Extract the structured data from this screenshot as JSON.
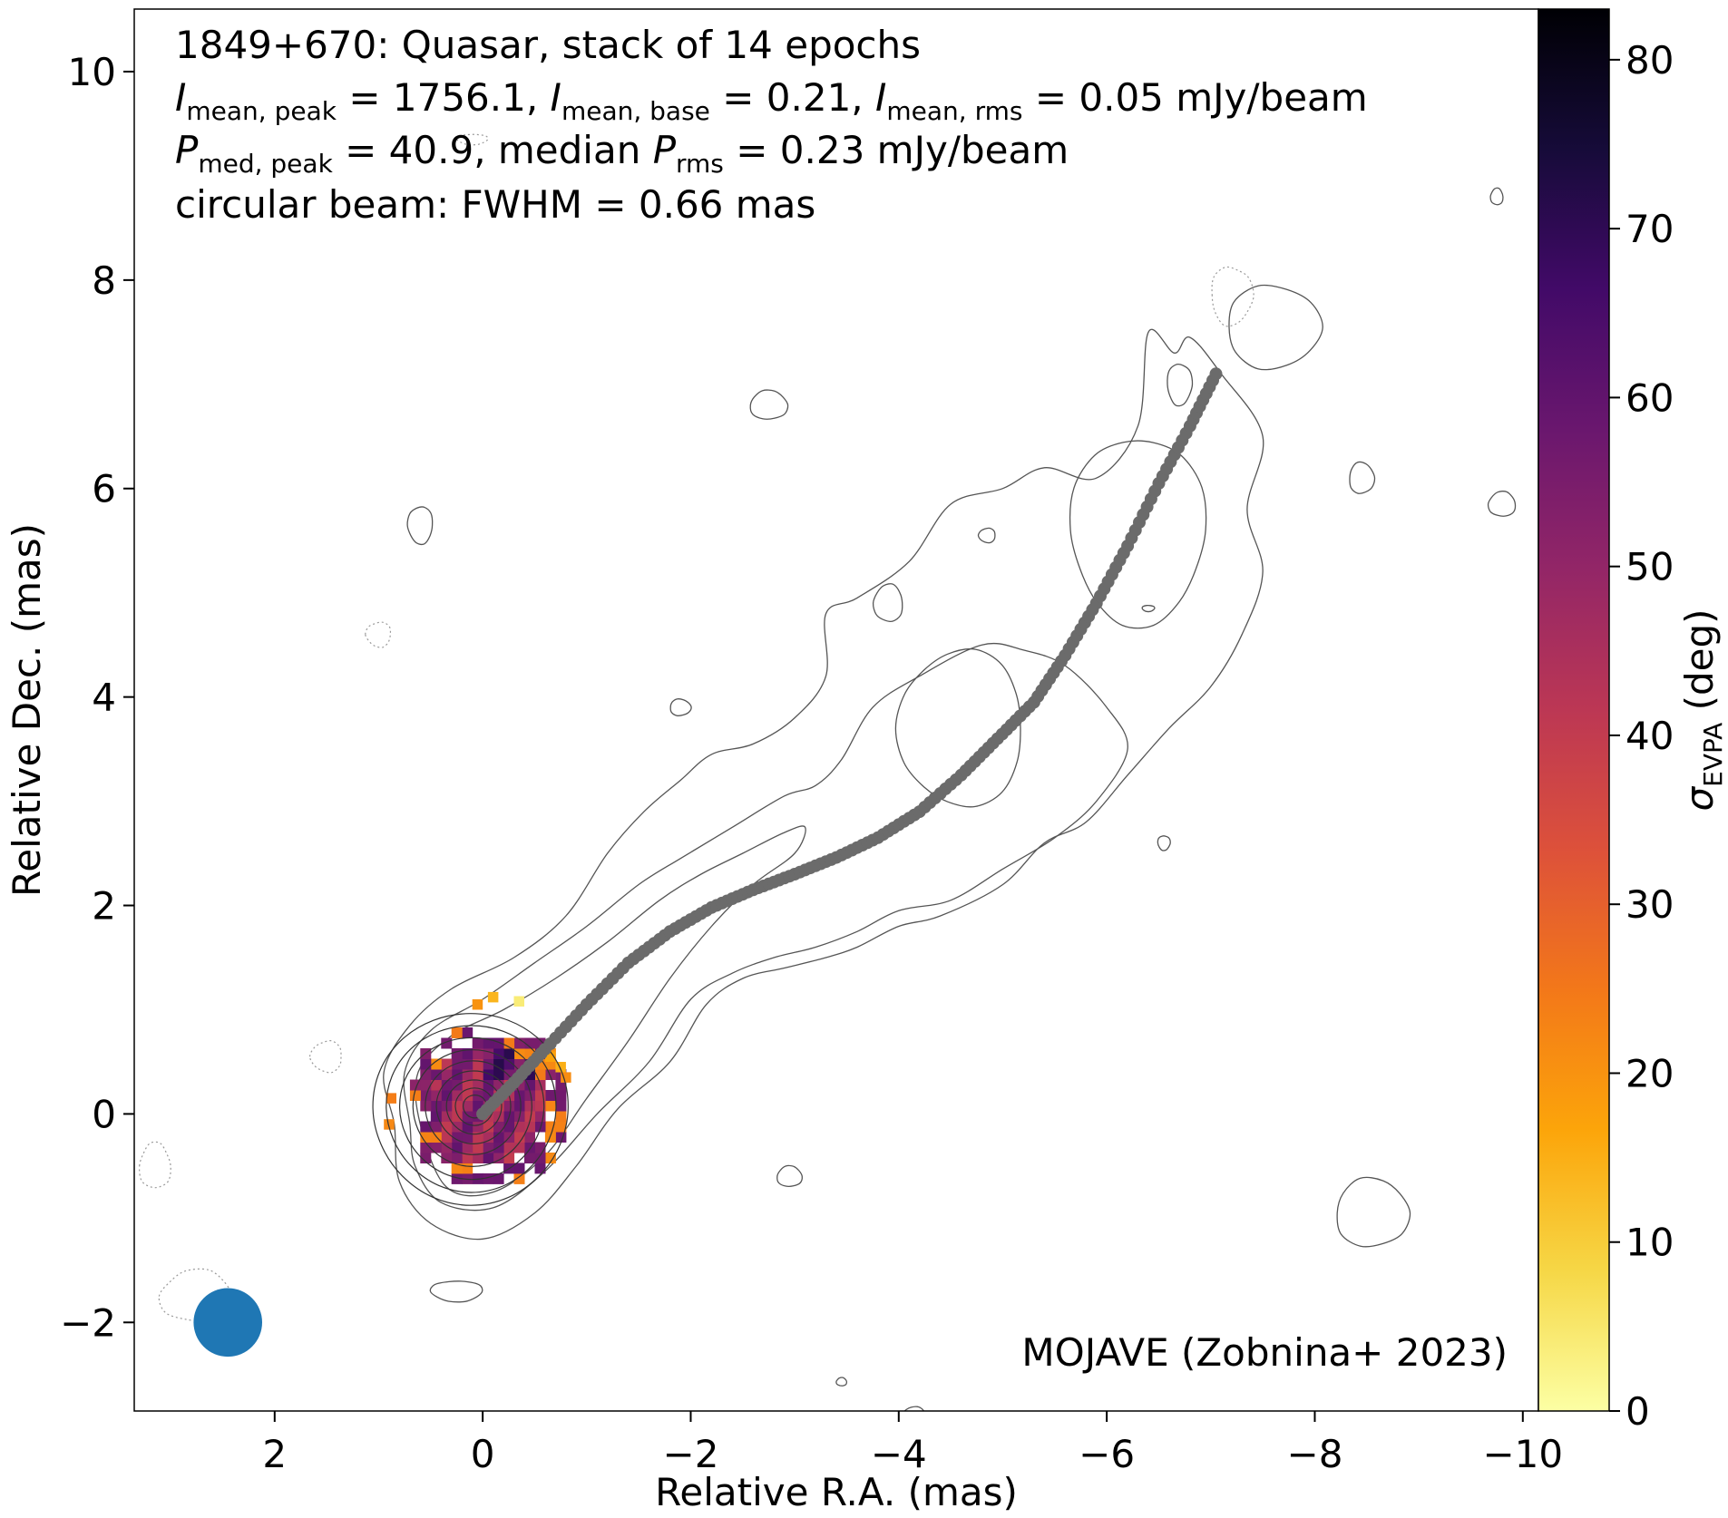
{
  "chart_data": {
    "type": "heatmap",
    "title_lines": [
      {
        "id": "title",
        "text": "1849+670: Quasar, stack of 14 epochs"
      },
      {
        "id": "line2",
        "segments": [
          {
            "t": "I",
            "it": true
          },
          {
            "t": "mean, peak",
            "sub": true
          },
          {
            "t": " = 1756.1, "
          },
          {
            "t": "I",
            "it": true
          },
          {
            "t": "mean, base",
            "sub": true
          },
          {
            "t": " = 0.21, "
          },
          {
            "t": "I",
            "it": true
          },
          {
            "t": "mean, rms",
            "sub": true
          },
          {
            "t": " = 0.05 mJy/beam"
          }
        ]
      },
      {
        "id": "line3",
        "segments": [
          {
            "t": "P",
            "it": true
          },
          {
            "t": "med, peak",
            "sub": true
          },
          {
            "t": " = 40.9, median "
          },
          {
            "t": "P",
            "it": true
          },
          {
            "t": "rms",
            "sub": true
          },
          {
            "t": " = 0.23 mJy/beam"
          }
        ]
      },
      {
        "id": "line4",
        "text": "circular beam: FWHM = 0.66 mas"
      }
    ],
    "annotation": "MOJAVE (Zobnina+ 2023)",
    "xlabel": "Relative R.A. (mas)",
    "ylabel": "Relative Dec. (mas)",
    "xlim": [
      3.35,
      -10.15
    ],
    "ylim": [
      -2.85,
      10.6
    ],
    "xticks": [
      2,
      0,
      -2,
      -4,
      -6,
      -8,
      -10
    ],
    "xtick_labels": [
      "2",
      "0",
      "−2",
      "−4",
      "−6",
      "−8",
      "−10"
    ],
    "yticks": [
      -2,
      0,
      2,
      4,
      6,
      8,
      10
    ],
    "ytick_labels": [
      "−2",
      "0",
      "2",
      "4",
      "6",
      "8",
      "10"
    ],
    "colorbar": {
      "label_main": "σ",
      "label_sub": "EVPA",
      "label_tail": " (deg)",
      "range": [
        0,
        83
      ],
      "ticks": [
        0,
        10,
        20,
        30,
        40,
        50,
        60,
        70,
        80
      ],
      "tick_labels": [
        "0",
        "10",
        "20",
        "30",
        "40",
        "50",
        "60",
        "70",
        "80"
      ],
      "colormap": "inferno_r",
      "stops": [
        "#fcffa4",
        "#f6d746",
        "#fca50a",
        "#f37819",
        "#dd513a",
        "#bc3754",
        "#932667",
        "#6a176e",
        "#420a68",
        "#160b39",
        "#000004"
      ]
    },
    "beam": {
      "x": 2.45,
      "y": -2.0,
      "fwhm": 0.66,
      "color": "#1f77b4"
    },
    "ridgeline": {
      "color": "#6b6b6b",
      "points": [
        [
          0,
          0
        ],
        [
          -0.3,
          0.3
        ],
        [
          -0.6,
          0.62
        ],
        [
          -1.0,
          1.05
        ],
        [
          -1.4,
          1.45
        ],
        [
          -1.8,
          1.75
        ],
        [
          -2.2,
          1.98
        ],
        [
          -2.6,
          2.15
        ],
        [
          -3.0,
          2.3
        ],
        [
          -3.4,
          2.46
        ],
        [
          -3.8,
          2.65
        ],
        [
          -4.2,
          2.9
        ],
        [
          -4.6,
          3.25
        ],
        [
          -4.95,
          3.6
        ],
        [
          -5.3,
          3.95
        ],
        [
          -5.6,
          4.4
        ],
        [
          -5.9,
          4.9
        ],
        [
          -6.2,
          5.45
        ],
        [
          -6.5,
          6.05
        ],
        [
          -6.8,
          6.6
        ],
        [
          -7.05,
          7.1
        ]
      ]
    },
    "polarization_pixels": {
      "center": [
        -0.05,
        0.08
      ],
      "radius": 0.8,
      "spacing": 0.1
    }
  }
}
